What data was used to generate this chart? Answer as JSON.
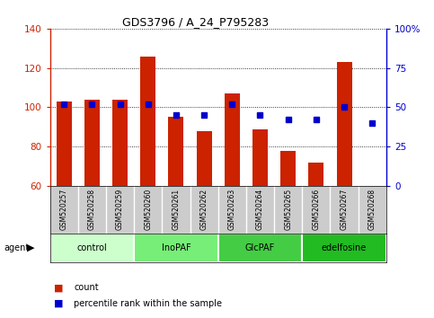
{
  "title": "GDS3796 / A_24_P795283",
  "samples": [
    "GSM520257",
    "GSM520258",
    "GSM520259",
    "GSM520260",
    "GSM520261",
    "GSM520262",
    "GSM520263",
    "GSM520264",
    "GSM520265",
    "GSM520266",
    "GSM520267",
    "GSM520268"
  ],
  "counts": [
    103,
    104,
    104,
    126,
    95,
    88,
    107,
    89,
    78,
    72,
    123,
    60
  ],
  "percentiles": [
    52,
    52,
    52,
    52,
    45,
    45,
    52,
    45,
    42,
    42,
    50,
    40
  ],
  "ylim_left": [
    60,
    140
  ],
  "ylim_right": [
    0,
    100
  ],
  "yticks_left": [
    60,
    80,
    100,
    120,
    140
  ],
  "yticks_right": [
    0,
    25,
    50,
    75,
    100
  ],
  "ytick_labels_right": [
    "0",
    "25",
    "50",
    "75",
    "100%"
  ],
  "bar_color": "#cc2200",
  "dot_color": "#0000cc",
  "groups": [
    {
      "label": "control",
      "indices": [
        0,
        1,
        2
      ],
      "color": "#ccffcc"
    },
    {
      "label": "InoPAF",
      "indices": [
        3,
        4,
        5
      ],
      "color": "#77ee77"
    },
    {
      "label": "GlcPAF",
      "indices": [
        6,
        7,
        8
      ],
      "color": "#44cc44"
    },
    {
      "label": "edelfosine",
      "indices": [
        9,
        10,
        11
      ],
      "color": "#22bb22"
    }
  ],
  "bar_width": 0.55,
  "legend_labels": [
    "count",
    "percentile rank within the sample"
  ],
  "background_color": "#ffffff",
  "tick_area_color": "#cccccc"
}
